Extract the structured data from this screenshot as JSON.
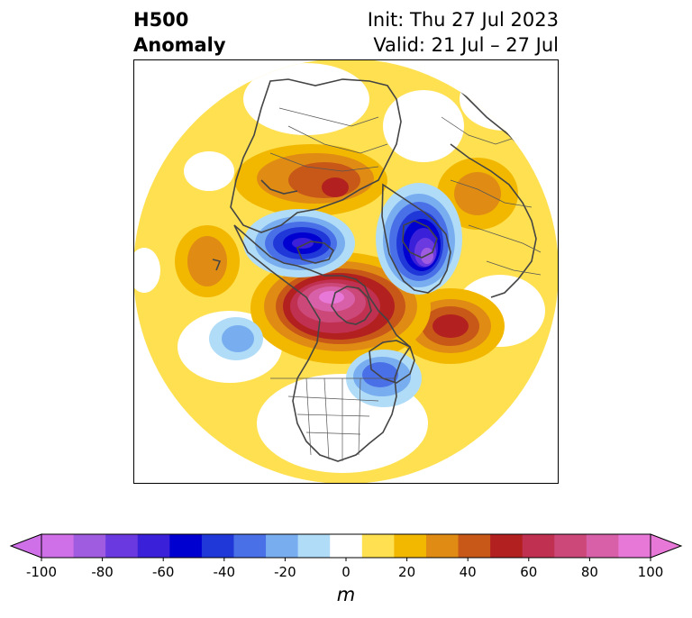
{
  "header": {
    "title_line1": "H500",
    "title_line2": "Anomaly",
    "init_text": "Init: Thu 27 Jul 2023",
    "valid_text": "Valid: 21 Jul – 27 Jul"
  },
  "colorbar": {
    "unit": "m",
    "tick_labels": [
      "-100",
      "-80",
      "-60",
      "-40",
      "-20",
      "0",
      "20",
      "40",
      "60",
      "80",
      "100"
    ],
    "levels": [
      -100,
      -90,
      -80,
      -70,
      -60,
      -50,
      -40,
      -30,
      -20,
      -10,
      10,
      20,
      30,
      40,
      50,
      60,
      70,
      80,
      90,
      100
    ],
    "colors": [
      "#d070e8",
      "#a05ce0",
      "#6a3ae0",
      "#3a20d8",
      "#0000d0",
      "#2038d8",
      "#4a70e8",
      "#78aef0",
      "#b0dcf8",
      "#ffffff",
      "#ffe050",
      "#f2b800",
      "#e08c14",
      "#c85818",
      "#b22020",
      "#c03050",
      "#cc4878",
      "#d860a8",
      "#e878d8"
    ],
    "under_color": "#d070e8",
    "over_color": "#e878d8"
  },
  "map": {
    "projection": "north-polar-stereographic",
    "colors": {
      "yellow": "#ffe050",
      "orange": "#f2b800",
      "dark_orange": "#e08c14",
      "red": "#b22020",
      "crimson": "#c03050",
      "pink": "#d860a8",
      "magenta": "#e878d8",
      "light_blue": "#b0dcf8",
      "sky_blue": "#78aef0",
      "mid_blue": "#4a70e8",
      "blue": "#0000d0",
      "violet": "#6a3ae0",
      "purple": "#a05ce0"
    }
  }
}
